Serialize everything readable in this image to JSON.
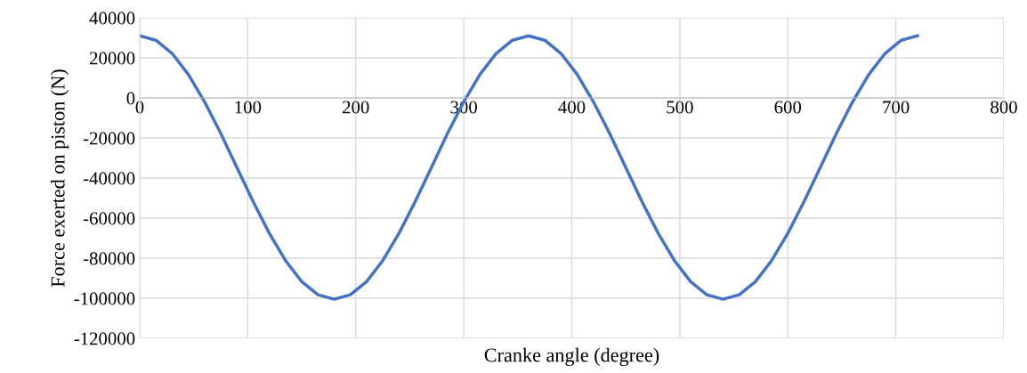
{
  "chart_data": {
    "type": "line",
    "xlabel": "Cranke angle (degree)",
    "ylabel": "Force exerted on piston (N)",
    "x": [
      0,
      15,
      30,
      45,
      60,
      75,
      90,
      105,
      120,
      135,
      150,
      165,
      180,
      195,
      210,
      225,
      240,
      255,
      270,
      285,
      300,
      315,
      330,
      345,
      360,
      375,
      390,
      405,
      420,
      435,
      450,
      465,
      480,
      495,
      510,
      525,
      540,
      555,
      570,
      585,
      600,
      615,
      630,
      645,
      660,
      675,
      690,
      705,
      720
    ],
    "series": [
      {
        "color": "#4472c4",
        "values": [
          31000,
          28800,
          22200,
          11700,
          -1900,
          -17700,
          -34800,
          -51800,
          -67600,
          -81200,
          -91700,
          -98300,
          -100500,
          -98300,
          -91700,
          -81200,
          -67600,
          -51800,
          -34800,
          -17700,
          -1900,
          11700,
          22200,
          28800,
          31000,
          28800,
          22200,
          11700,
          -1900,
          -17700,
          -34800,
          -51800,
          -67600,
          -81200,
          -91700,
          -98300,
          -100500,
          -98300,
          -91700,
          -81200,
          -67600,
          -51800,
          -34800,
          -17700,
          -1900,
          11700,
          22200,
          28800,
          31000
        ]
      }
    ],
    "xlim": [
      0,
      800
    ],
    "xticks": [
      0,
      100,
      200,
      300,
      400,
      500,
      600,
      700,
      800
    ],
    "ylim": [
      -120000,
      40000
    ],
    "yticks": [
      -120000,
      -100000,
      -80000,
      -60000,
      -40000,
      -20000,
      0,
      20000,
      40000
    ],
    "grid": true,
    "legend": false,
    "marker": "none",
    "line_style": "solid"
  }
}
